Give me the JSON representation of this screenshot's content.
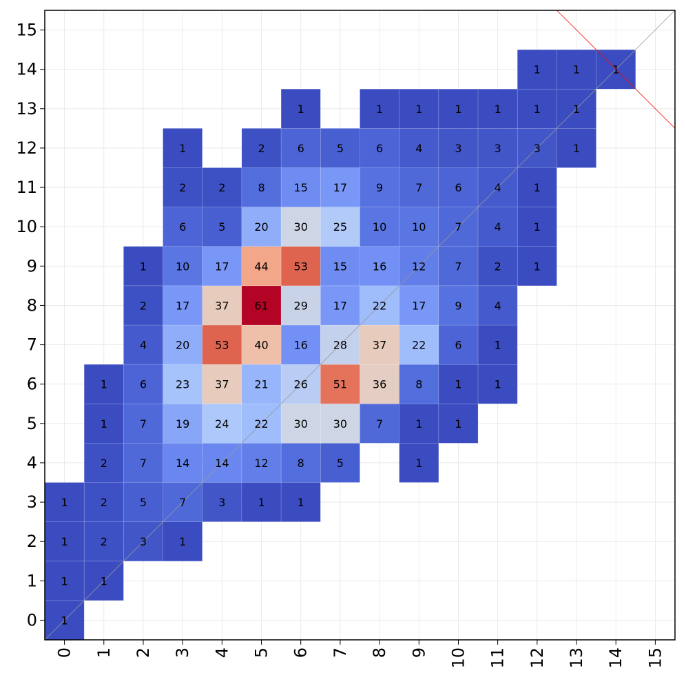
{
  "chart_data": {
    "type": "heatmap",
    "title": "",
    "xlabel": "",
    "ylabel": "",
    "x_ticks": [
      "0",
      "1",
      "2",
      "3",
      "4",
      "5",
      "6",
      "7",
      "8",
      "9",
      "10",
      "11",
      "12",
      "13",
      "14",
      "15"
    ],
    "y_ticks": [
      "0",
      "1",
      "2",
      "3",
      "4",
      "5",
      "6",
      "7",
      "8",
      "9",
      "10",
      "11",
      "12",
      "13",
      "14",
      "15"
    ],
    "xlim": [
      -0.5,
      15.5
    ],
    "ylim": [
      -0.5,
      15.5
    ],
    "grid": true,
    "colormap": "coolwarm",
    "value_range": [
      1,
      61
    ],
    "colors": {
      "low": "#3b4cc0",
      "mid": "#dddddd",
      "high": "#b40426",
      "diagonal": "#999999",
      "annotation_line": "#ff0000"
    },
    "diagonal_line": {
      "from": [
        -0.5,
        -0.5
      ],
      "to": [
        15.5,
        15.5
      ]
    },
    "annotation_line": {
      "from": [
        12.5,
        15.5
      ],
      "to": [
        15.5,
        12.5
      ]
    },
    "cells": [
      {
        "x": 0,
        "y": 0,
        "v": 1
      },
      {
        "x": 0,
        "y": 1,
        "v": 1
      },
      {
        "x": 1,
        "y": 1,
        "v": 1
      },
      {
        "x": 0,
        "y": 2,
        "v": 1
      },
      {
        "x": 1,
        "y": 2,
        "v": 2
      },
      {
        "x": 2,
        "y": 2,
        "v": 3
      },
      {
        "x": 3,
        "y": 2,
        "v": 1
      },
      {
        "x": 0,
        "y": 3,
        "v": 1
      },
      {
        "x": 1,
        "y": 3,
        "v": 2
      },
      {
        "x": 2,
        "y": 3,
        "v": 5
      },
      {
        "x": 3,
        "y": 3,
        "v": 7
      },
      {
        "x": 4,
        "y": 3,
        "v": 3
      },
      {
        "x": 5,
        "y": 3,
        "v": 1
      },
      {
        "x": 6,
        "y": 3,
        "v": 1
      },
      {
        "x": 1,
        "y": 4,
        "v": 2
      },
      {
        "x": 2,
        "y": 4,
        "v": 7
      },
      {
        "x": 3,
        "y": 4,
        "v": 14
      },
      {
        "x": 4,
        "y": 4,
        "v": 14
      },
      {
        "x": 5,
        "y": 4,
        "v": 12
      },
      {
        "x": 6,
        "y": 4,
        "v": 8
      },
      {
        "x": 7,
        "y": 4,
        "v": 5
      },
      {
        "x": 9,
        "y": 4,
        "v": 1
      },
      {
        "x": 1,
        "y": 5,
        "v": 1
      },
      {
        "x": 2,
        "y": 5,
        "v": 7
      },
      {
        "x": 3,
        "y": 5,
        "v": 19
      },
      {
        "x": 4,
        "y": 5,
        "v": 24
      },
      {
        "x": 5,
        "y": 5,
        "v": 22
      },
      {
        "x": 6,
        "y": 5,
        "v": 30
      },
      {
        "x": 7,
        "y": 5,
        "v": 30
      },
      {
        "x": 8,
        "y": 5,
        "v": 7
      },
      {
        "x": 9,
        "y": 5,
        "v": 1
      },
      {
        "x": 10,
        "y": 5,
        "v": 1
      },
      {
        "x": 1,
        "y": 6,
        "v": 1
      },
      {
        "x": 2,
        "y": 6,
        "v": 6
      },
      {
        "x": 3,
        "y": 6,
        "v": 23
      },
      {
        "x": 4,
        "y": 6,
        "v": 37
      },
      {
        "x": 5,
        "y": 6,
        "v": 21
      },
      {
        "x": 6,
        "y": 6,
        "v": 26
      },
      {
        "x": 7,
        "y": 6,
        "v": 51
      },
      {
        "x": 8,
        "y": 6,
        "v": 36
      },
      {
        "x": 9,
        "y": 6,
        "v": 8
      },
      {
        "x": 10,
        "y": 6,
        "v": 1
      },
      {
        "x": 11,
        "y": 6,
        "v": 1
      },
      {
        "x": 2,
        "y": 7,
        "v": 4
      },
      {
        "x": 3,
        "y": 7,
        "v": 20
      },
      {
        "x": 4,
        "y": 7,
        "v": 53
      },
      {
        "x": 5,
        "y": 7,
        "v": 40
      },
      {
        "x": 6,
        "y": 7,
        "v": 16
      },
      {
        "x": 7,
        "y": 7,
        "v": 28
      },
      {
        "x": 8,
        "y": 7,
        "v": 37
      },
      {
        "x": 9,
        "y": 7,
        "v": 22
      },
      {
        "x": 10,
        "y": 7,
        "v": 6
      },
      {
        "x": 11,
        "y": 7,
        "v": 1
      },
      {
        "x": 2,
        "y": 8,
        "v": 2
      },
      {
        "x": 3,
        "y": 8,
        "v": 17
      },
      {
        "x": 4,
        "y": 8,
        "v": 37
      },
      {
        "x": 5,
        "y": 8,
        "v": 61
      },
      {
        "x": 6,
        "y": 8,
        "v": 29
      },
      {
        "x": 7,
        "y": 8,
        "v": 17
      },
      {
        "x": 8,
        "y": 8,
        "v": 22
      },
      {
        "x": 9,
        "y": 8,
        "v": 17
      },
      {
        "x": 10,
        "y": 8,
        "v": 9
      },
      {
        "x": 11,
        "y": 8,
        "v": 4
      },
      {
        "x": 2,
        "y": 9,
        "v": 1
      },
      {
        "x": 3,
        "y": 9,
        "v": 10
      },
      {
        "x": 4,
        "y": 9,
        "v": 17
      },
      {
        "x": 5,
        "y": 9,
        "v": 44
      },
      {
        "x": 6,
        "y": 9,
        "v": 53
      },
      {
        "x": 7,
        "y": 9,
        "v": 15
      },
      {
        "x": 8,
        "y": 9,
        "v": 16
      },
      {
        "x": 9,
        "y": 9,
        "v": 12
      },
      {
        "x": 10,
        "y": 9,
        "v": 7
      },
      {
        "x": 11,
        "y": 9,
        "v": 2
      },
      {
        "x": 12,
        "y": 9,
        "v": 1
      },
      {
        "x": 3,
        "y": 10,
        "v": 6
      },
      {
        "x": 4,
        "y": 10,
        "v": 5
      },
      {
        "x": 5,
        "y": 10,
        "v": 20
      },
      {
        "x": 6,
        "y": 10,
        "v": 30
      },
      {
        "x": 7,
        "y": 10,
        "v": 25
      },
      {
        "x": 8,
        "y": 10,
        "v": 10
      },
      {
        "x": 9,
        "y": 10,
        "v": 10
      },
      {
        "x": 10,
        "y": 10,
        "v": 7
      },
      {
        "x": 11,
        "y": 10,
        "v": 4
      },
      {
        "x": 12,
        "y": 10,
        "v": 1
      },
      {
        "x": 3,
        "y": 11,
        "v": 2
      },
      {
        "x": 4,
        "y": 11,
        "v": 2
      },
      {
        "x": 5,
        "y": 11,
        "v": 8
      },
      {
        "x": 6,
        "y": 11,
        "v": 15
      },
      {
        "x": 7,
        "y": 11,
        "v": 17
      },
      {
        "x": 8,
        "y": 11,
        "v": 9
      },
      {
        "x": 9,
        "y": 11,
        "v": 7
      },
      {
        "x": 10,
        "y": 11,
        "v": 6
      },
      {
        "x": 11,
        "y": 11,
        "v": 4
      },
      {
        "x": 12,
        "y": 11,
        "v": 1
      },
      {
        "x": 3,
        "y": 12,
        "v": 1
      },
      {
        "x": 5,
        "y": 12,
        "v": 2
      },
      {
        "x": 6,
        "y": 12,
        "v": 6
      },
      {
        "x": 7,
        "y": 12,
        "v": 5
      },
      {
        "x": 8,
        "y": 12,
        "v": 6
      },
      {
        "x": 9,
        "y": 12,
        "v": 4
      },
      {
        "x": 10,
        "y": 12,
        "v": 3
      },
      {
        "x": 11,
        "y": 12,
        "v": 3
      },
      {
        "x": 12,
        "y": 12,
        "v": 3
      },
      {
        "x": 13,
        "y": 12,
        "v": 1
      },
      {
        "x": 6,
        "y": 13,
        "v": 1
      },
      {
        "x": 8,
        "y": 13,
        "v": 1
      },
      {
        "x": 9,
        "y": 13,
        "v": 1
      },
      {
        "x": 10,
        "y": 13,
        "v": 1
      },
      {
        "x": 11,
        "y": 13,
        "v": 1
      },
      {
        "x": 12,
        "y": 13,
        "v": 1
      },
      {
        "x": 13,
        "y": 13,
        "v": 1
      },
      {
        "x": 12,
        "y": 14,
        "v": 1
      },
      {
        "x": 13,
        "y": 14,
        "v": 1
      },
      {
        "x": 14,
        "y": 14,
        "v": 1
      }
    ]
  }
}
